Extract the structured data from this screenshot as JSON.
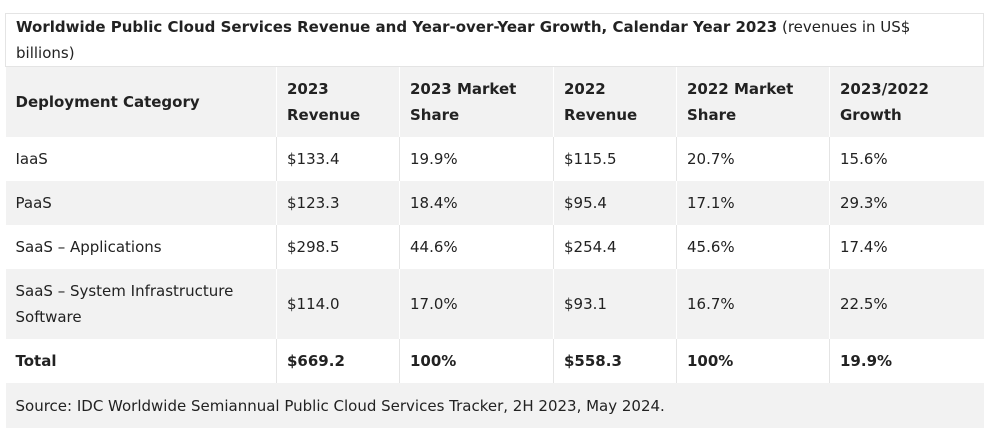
{
  "title": {
    "bold": "Worldwide Public Cloud Services Revenue and Year-over-Year Growth, Calendar Year 2023",
    "normal": "(revenues in US$ billions)"
  },
  "headers": [
    "Deployment Category",
    "2023 Revenue",
    "2023 Market Share",
    "2022 Revenue",
    "2022 Market Share",
    "2023/2022 Growth"
  ],
  "rows": [
    [
      "IaaS",
      "$133.4",
      "19.9%",
      "$115.5",
      "20.7%",
      "15.6%"
    ],
    [
      "PaaS",
      "$123.3",
      "18.4%",
      "$95.4",
      "17.1%",
      "29.3%"
    ],
    [
      "SaaS – Applications",
      "$298.5",
      "44.6%",
      "$254.4",
      "45.6%",
      "17.4%"
    ],
    [
      "SaaS – System Infrastructure Software",
      "$114.0",
      "17.0%",
      "$93.1",
      "16.7%",
      "22.5%"
    ]
  ],
  "total": [
    "Total",
    "$669.2",
    "100%",
    "$558.3",
    "100%",
    "19.9%"
  ],
  "source": "Source: IDC Worldwide Semiannual Public Cloud Services Tracker, 2H 2023, May 2024."
}
